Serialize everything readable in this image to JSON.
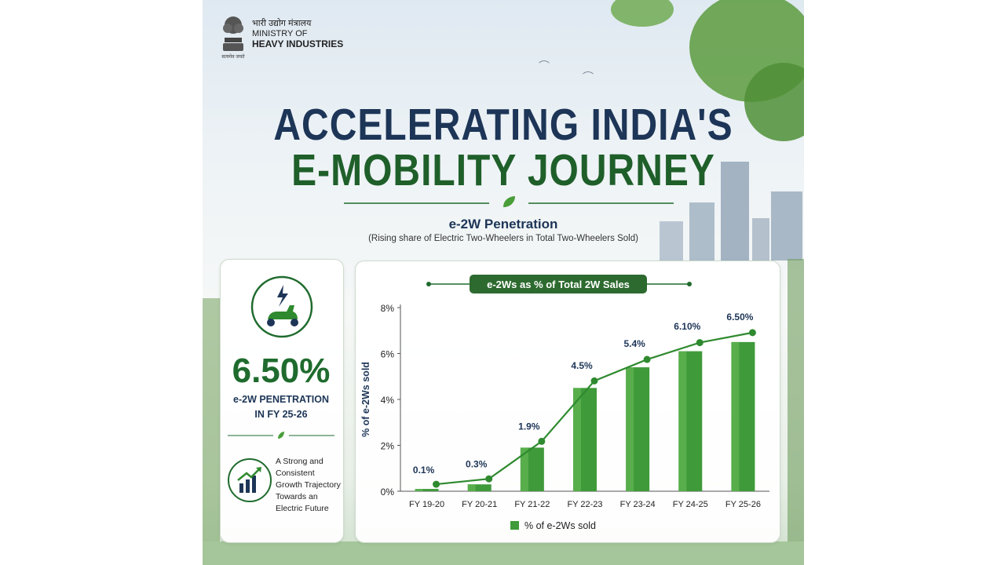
{
  "header": {
    "ministry_hindi": "भारी उद्योग मंत्रालय",
    "ministry_line1": "MINISTRY OF",
    "ministry_line2": "HEAVY INDUSTRIES",
    "emblem_caption": "सत्यमेव जयते"
  },
  "title": {
    "line1": "ACCELERATING INDIA'S",
    "line2": "E-MOBILITY JOURNEY"
  },
  "section": {
    "heading": "e-2W Penetration",
    "note": "(Rising share of Electric Two-Wheelers in Total Two-Wheelers Sold)"
  },
  "stat_card": {
    "value": "6.50%",
    "label_line1": "e-2W PENETRATION",
    "label_line2": "IN FY 25-26",
    "trend_lines": [
      "A Strong and",
      "Consistent",
      "Growth Trajectory",
      "Towards an",
      "Electric Future"
    ]
  },
  "colors": {
    "navy": "#1d3557",
    "green_dark": "#1f6b2e",
    "green_bar": "#3f9a3a",
    "green_bar_light": "#6cc05a",
    "green_line": "#2f8a2f"
  },
  "chart_data": {
    "type": "bar",
    "title": "e-2Ws as  % of Total 2W Sales",
    "ylabel": "% of e-2Ws sold",
    "xlabel": "",
    "categories": [
      "FY 19-20",
      "FY 20-21",
      "FY 21-22",
      "FY 22-23",
      "FY 23-24",
      "FY 24-25",
      "FY 25-26"
    ],
    "series": [
      {
        "name": "% of e-2Ws sold",
        "values": [
          0.1,
          0.3,
          1.9,
          4.5,
          5.4,
          6.1,
          6.5
        ]
      }
    ],
    "data_labels": [
      "0.1%",
      "0.3%",
      "1.9%",
      "4.5%",
      "5.4%",
      "6.10%",
      "6.50%"
    ],
    "yticks": [
      "0%",
      "2%",
      "4%",
      "6%",
      "8%"
    ],
    "ylim": [
      0,
      8
    ],
    "overlay_line": true,
    "grid": false,
    "legend": "bottom-center"
  }
}
